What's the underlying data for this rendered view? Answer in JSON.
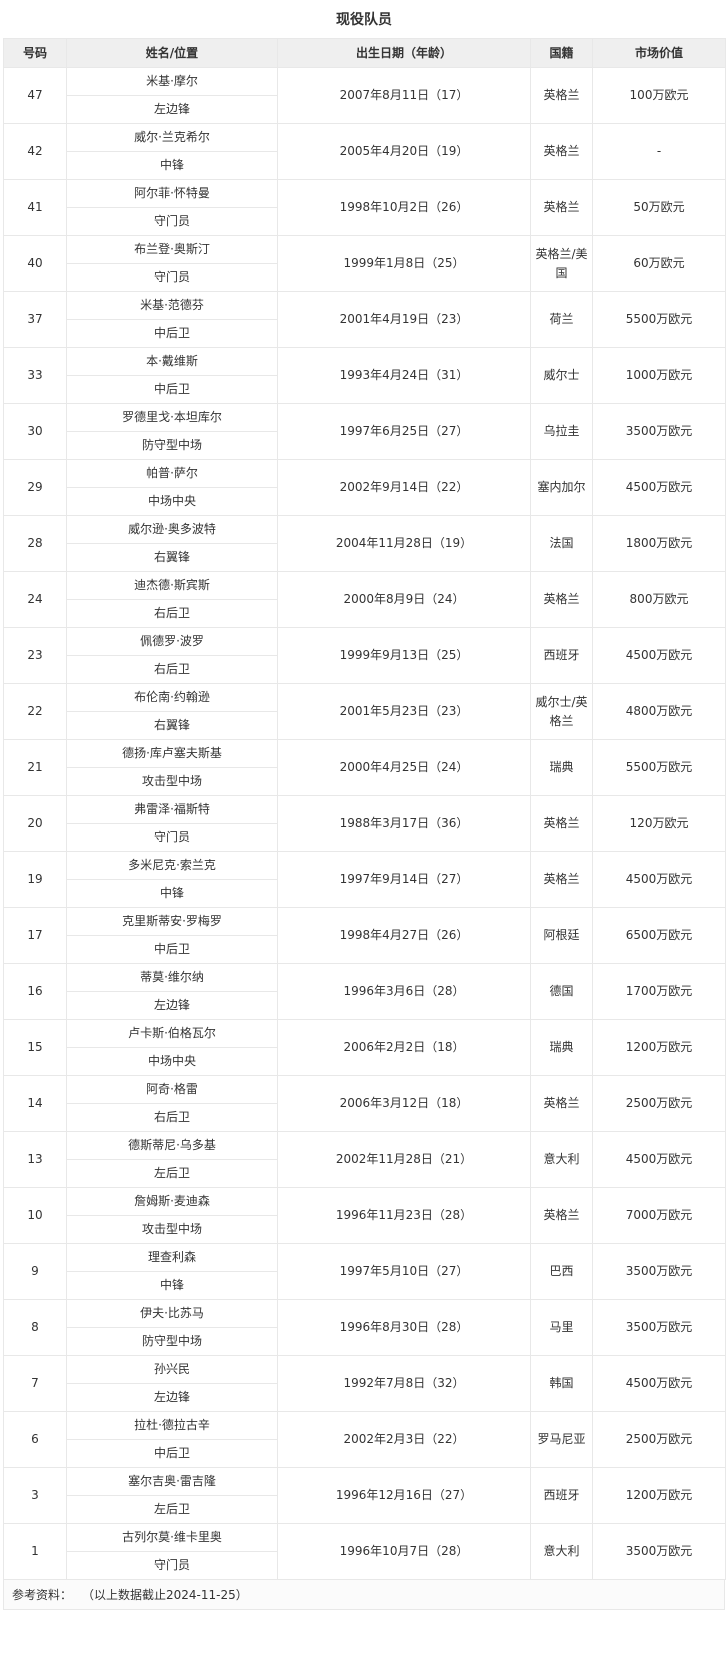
{
  "page": {
    "title": "现役队员"
  },
  "table": {
    "headers": [
      "号码",
      "姓名/位置",
      "出生日期（年龄）",
      "国籍",
      "市场价值"
    ]
  },
  "players": [
    {
      "number": "47",
      "name": "米基·摩尔",
      "position": "左边锋",
      "birth": "2007年8月11日（17）",
      "nationality": "英格兰",
      "value": "100万欧元"
    },
    {
      "number": "42",
      "name": "威尔·兰克希尔",
      "position": "中锋",
      "birth": "2005年4月20日（19）",
      "nationality": "英格兰",
      "value": "-"
    },
    {
      "number": "41",
      "name": "阿尔菲·怀特曼",
      "position": "守门员",
      "birth": "1998年10月2日（26）",
      "nationality": "英格兰",
      "value": "50万欧元"
    },
    {
      "number": "40",
      "name": "布兰登·奥斯汀",
      "position": "守门员",
      "birth": "1999年1月8日（25）",
      "nationality": "英格兰/美国",
      "value": "60万欧元"
    },
    {
      "number": "37",
      "name": "米基·范德芬",
      "position": "中后卫",
      "birth": "2001年4月19日（23）",
      "nationality": "荷兰",
      "value": "5500万欧元"
    },
    {
      "number": "33",
      "name": "本·戴维斯",
      "position": "中后卫",
      "birth": "1993年4月24日（31）",
      "nationality": "威尔士",
      "value": "1000万欧元"
    },
    {
      "number": "30",
      "name": "罗德里戈·本坦库尔",
      "position": "防守型中场",
      "birth": "1997年6月25日（27）",
      "nationality": "乌拉圭",
      "value": "3500万欧元"
    },
    {
      "number": "29",
      "name": "帕普·萨尔",
      "position": "中场中央",
      "birth": "2002年9月14日（22）",
      "nationality": "塞内加尔",
      "value": "4500万欧元"
    },
    {
      "number": "28",
      "name": "威尔逊·奥多波特",
      "position": "右翼锋",
      "birth": "2004年11月28日（19）",
      "nationality": "法国",
      "value": "1800万欧元"
    },
    {
      "number": "24",
      "name": "迪杰德·斯宾斯",
      "position": "右后卫",
      "birth": "2000年8月9日（24）",
      "nationality": "英格兰",
      "value": "800万欧元"
    },
    {
      "number": "23",
      "name": "佩德罗·波罗",
      "position": "右后卫",
      "birth": "1999年9月13日（25）",
      "nationality": "西班牙",
      "value": "4500万欧元"
    },
    {
      "number": "22",
      "name": "布伦南·约翰逊",
      "position": "右翼锋",
      "birth": "2001年5月23日（23）",
      "nationality": "威尔士/英格兰",
      "value": "4800万欧元"
    },
    {
      "number": "21",
      "name": "德扬·库卢塞夫斯基",
      "position": "攻击型中场",
      "birth": "2000年4月25日（24）",
      "nationality": "瑞典",
      "value": "5500万欧元"
    },
    {
      "number": "20",
      "name": "弗雷泽·福斯特",
      "position": "守门员",
      "birth": "1988年3月17日（36）",
      "nationality": "英格兰",
      "value": "120万欧元"
    },
    {
      "number": "19",
      "name": "多米尼克·索兰克",
      "position": "中锋",
      "birth": "1997年9月14日（27）",
      "nationality": "英格兰",
      "value": "4500万欧元"
    },
    {
      "number": "17",
      "name": "克里斯蒂安·罗梅罗",
      "position": "中后卫",
      "birth": "1998年4月27日（26）",
      "nationality": "阿根廷",
      "value": "6500万欧元"
    },
    {
      "number": "16",
      "name": "蒂莫·维尔纳",
      "position": "左边锋",
      "birth": "1996年3月6日（28）",
      "nationality": "德国",
      "value": "1700万欧元"
    },
    {
      "number": "15",
      "name": "卢卡斯·伯格瓦尔",
      "position": "中场中央",
      "birth": "2006年2月2日（18）",
      "nationality": "瑞典",
      "value": "1200万欧元"
    },
    {
      "number": "14",
      "name": "阿奇·格雷",
      "position": "右后卫",
      "birth": "2006年3月12日（18）",
      "nationality": "英格兰",
      "value": "2500万欧元"
    },
    {
      "number": "13",
      "name": "德斯蒂尼·乌多基",
      "position": "左后卫",
      "birth": "2002年11月28日（21）",
      "nationality": "意大利",
      "value": "4500万欧元"
    },
    {
      "number": "10",
      "name": "詹姆斯·麦迪森",
      "position": "攻击型中场",
      "birth": "1996年11月23日（28）",
      "nationality": "英格兰",
      "value": "7000万欧元"
    },
    {
      "number": "9",
      "name": "理查利森",
      "position": "中锋",
      "birth": "1997年5月10日（27）",
      "nationality": "巴西",
      "value": "3500万欧元"
    },
    {
      "number": "8",
      "name": "伊夫·比苏马",
      "position": "防守型中场",
      "birth": "1996年8月30日（28）",
      "nationality": "马里",
      "value": "3500万欧元"
    },
    {
      "number": "7",
      "name": "孙兴民",
      "position": "左边锋",
      "birth": "1992年7月8日（32）",
      "nationality": "韩国",
      "value": "4500万欧元"
    },
    {
      "number": "6",
      "name": "拉杜·德拉古辛",
      "position": "中后卫",
      "birth": "2002年2月3日（22）",
      "nationality": "罗马尼亚",
      "value": "2500万欧元"
    },
    {
      "number": "3",
      "name": "塞尔吉奥·雷吉隆",
      "position": "左后卫",
      "birth": "1996年12月16日（27）",
      "nationality": "西班牙",
      "value": "1200万欧元"
    },
    {
      "number": "1",
      "name": "古列尔莫·维卡里奥",
      "position": "守门员",
      "birth": "1996年10月7日（28）",
      "nationality": "意大利",
      "value": "3500万欧元"
    }
  ],
  "footer": {
    "label": "参考资料：",
    "note": "（以上数据截止2024-11-25）"
  }
}
